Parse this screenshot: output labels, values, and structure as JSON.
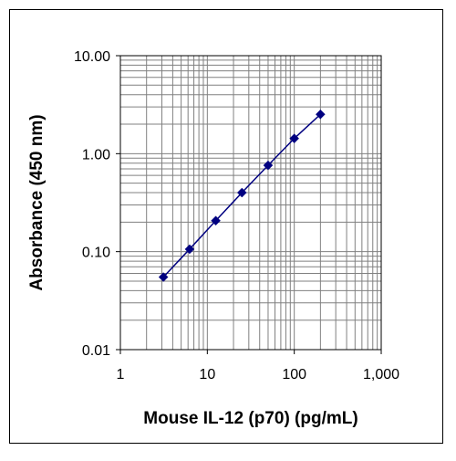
{
  "chart_data": {
    "type": "scatter",
    "xlabel": "Mouse IL-12 (p70) (pg/mL)",
    "ylabel": "Absorbance (450 nm)",
    "x_scale": "log",
    "y_scale": "log",
    "xlim": [
      1,
      1000
    ],
    "ylim": [
      0.01,
      10
    ],
    "x_ticks": [
      "1",
      "10",
      "100",
      "1,000"
    ],
    "y_ticks": [
      "0.01",
      "0.10",
      "1.00",
      "10.00"
    ],
    "grid": true,
    "legend": "none",
    "series": [
      {
        "x": [
          3.125,
          6.25,
          12.5,
          25,
          50,
          100,
          200
        ],
        "y": [
          0.055,
          0.106,
          0.207,
          0.4,
          0.76,
          1.43,
          2.52
        ],
        "color": "#000080",
        "marker": "diamond",
        "line": true
      }
    ]
  }
}
